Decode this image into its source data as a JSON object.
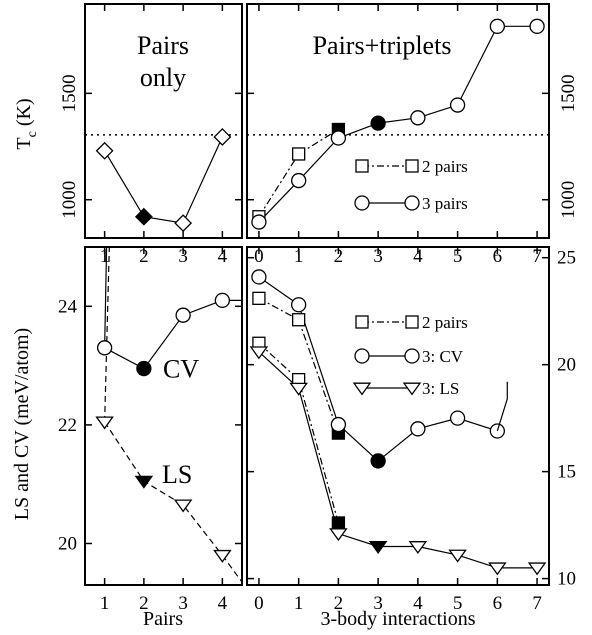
{
  "chart_data": [
    {
      "type": "line",
      "panel": "top-left",
      "title": "Pairs only",
      "ylabel": "Tc (K)",
      "xlim": [
        0.5,
        4.5
      ],
      "ylim": [
        820,
        1920
      ],
      "xticks": [
        "1",
        "2",
        "3",
        "4"
      ],
      "yticks": [
        "1000",
        "1500"
      ],
      "reference_line": 1305,
      "series": [
        {
          "marker": "diamond",
          "line": "solid",
          "x": [
            1,
            2,
            3,
            4
          ],
          "y": [
            1230,
            920,
            890,
            1295
          ],
          "filled": [
            false,
            true,
            false,
            false
          ]
        }
      ]
    },
    {
      "type": "line",
      "panel": "top-right",
      "title": "Pairs+triplets",
      "xlim": [
        -0.3,
        7.3
      ],
      "ylim": [
        820,
        1920
      ],
      "xticks": [
        "0",
        "1",
        "2",
        "3",
        "4",
        "5",
        "6",
        "7"
      ],
      "yticks": [
        "1000",
        "1500"
      ],
      "reference_line": 1305,
      "legend": "center-right",
      "series": [
        {
          "name": "2 pairs",
          "marker": "square",
          "line": "dash-dot",
          "x": [
            0,
            1,
            2
          ],
          "y": [
            920,
            1215,
            1330
          ],
          "filled": [
            false,
            false,
            true
          ]
        },
        {
          "name": "3 pairs",
          "marker": "circle",
          "line": "solid",
          "x": [
            0,
            1,
            2,
            3,
            4,
            5,
            6,
            7
          ],
          "y": [
            895,
            1090,
            1290,
            1360,
            1385,
            1445,
            1815,
            1815
          ],
          "filled": [
            false,
            false,
            false,
            true,
            false,
            false,
            false,
            false
          ]
        }
      ]
    },
    {
      "type": "line",
      "panel": "bottom-left",
      "ylabel": "LS and CV (meV/atom)",
      "xlabel": "Pairs",
      "xlim": [
        0.5,
        4.5
      ],
      "ylim": [
        19.3,
        25
      ],
      "xticks": [
        "1",
        "2",
        "3",
        "4"
      ],
      "yticks": [
        "20",
        "22",
        "24"
      ],
      "annotations": [
        "CV",
        "LS"
      ],
      "series": [
        {
          "name": "CV",
          "marker": "circle",
          "line": "solid",
          "x": [
            1,
            2,
            3,
            4
          ],
          "y": [
            23.3,
            22.95,
            23.85,
            24.1
          ],
          "filled": [
            false,
            true,
            false,
            false
          ]
        },
        {
          "name": "LS",
          "marker": "triangle-down",
          "line": "dashed",
          "x": [
            1,
            2,
            3,
            4
          ],
          "y": [
            22.05,
            21.05,
            20.65,
            19.8
          ],
          "filled": [
            false,
            true,
            false,
            false
          ]
        }
      ]
    },
    {
      "type": "line",
      "panel": "bottom-right",
      "xlabel": "3-body interactions",
      "xlim": [
        -0.3,
        7.3
      ],
      "ylim": [
        9.7,
        25.5
      ],
      "xticks": [
        "0",
        "1",
        "2",
        "3",
        "4",
        "5",
        "6",
        "7"
      ],
      "yticks": [
        "10",
        "15",
        "20",
        "25"
      ],
      "legend": "top-right",
      "series": [
        {
          "name": "2 pairs",
          "marker": "square",
          "line": "dash-dot",
          "x": [
            0,
            1,
            2
          ],
          "y": [
            23.1,
            22.1,
            16.8
          ],
          "filled": [
            false,
            false,
            true
          ]
        },
        {
          "name": "2 pairs",
          "marker": "square",
          "line": "dash-dot",
          "x": [
            0,
            1,
            2
          ],
          "y": [
            21.0,
            19.3,
            12.6
          ],
          "filled": [
            false,
            false,
            true
          ]
        },
        {
          "name": "3: CV",
          "marker": "circle",
          "line": "solid",
          "x": [
            0,
            1,
            2,
            3,
            4,
            5,
            6
          ],
          "y": [
            24.1,
            22.8,
            17.2,
            15.5,
            17.0,
            17.5,
            16.9
          ],
          "filled": [
            false,
            false,
            false,
            true,
            false,
            false,
            false
          ]
        },
        {
          "name": "3: LS",
          "marker": "triangle-down",
          "line": "solid",
          "x": [
            0,
            1,
            2,
            3,
            4,
            5,
            6,
            7
          ],
          "y": [
            20.6,
            18.9,
            12.1,
            11.5,
            11.5,
            11.1,
            10.5,
            10.5
          ],
          "filled": [
            false,
            false,
            false,
            true,
            false,
            false,
            false,
            false
          ]
        }
      ]
    }
  ]
}
